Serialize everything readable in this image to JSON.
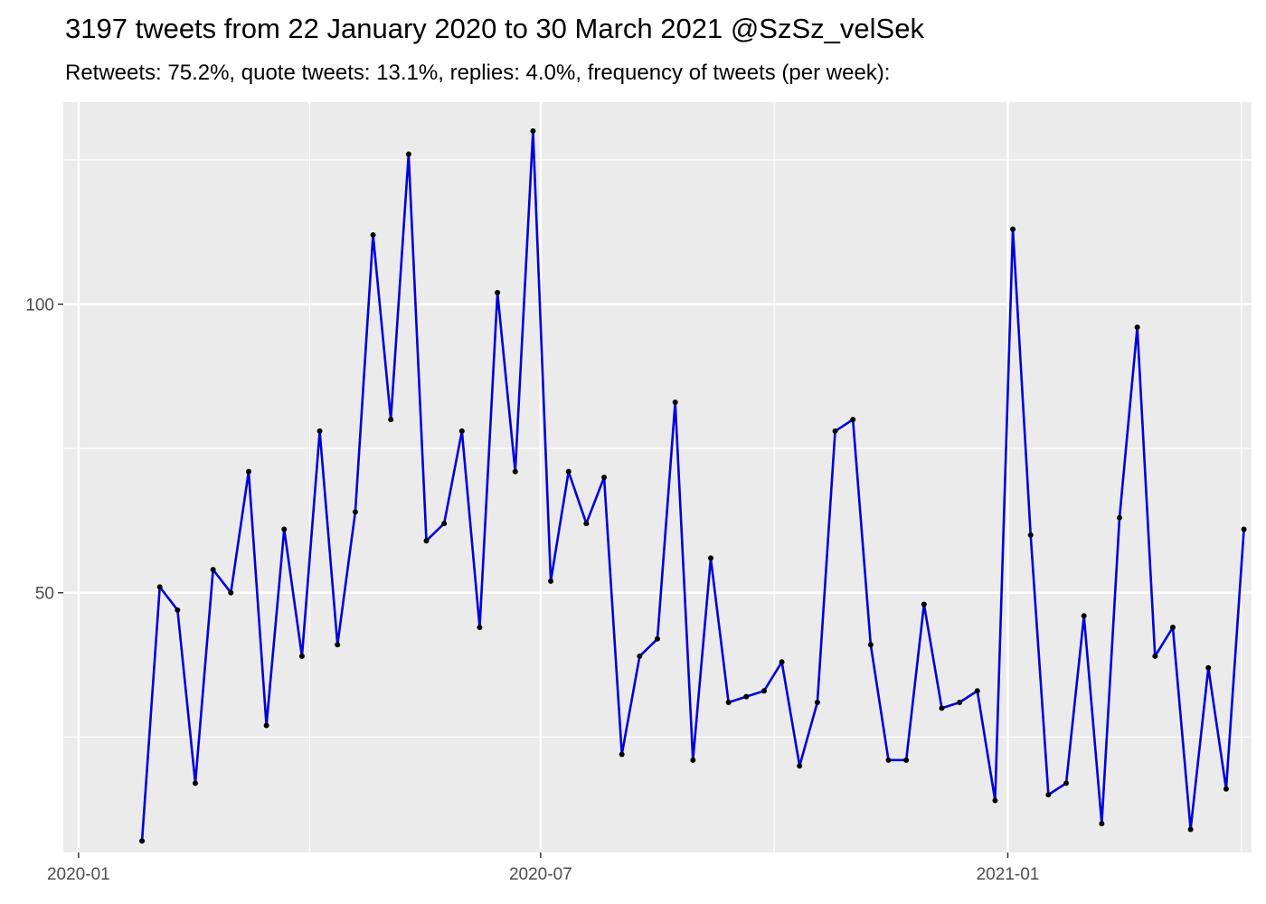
{
  "chart_data": {
    "type": "line",
    "title": "3197 tweets from 22 January 2020 to 30 March 2021 @SzSz_velSek",
    "subtitle": "Retweets: 75.2%, quote tweets: 13.1%, replies: 4.0%, frequency of tweets (per week):",
    "xlabel": "",
    "ylabel": "",
    "x_ticks": [
      {
        "date": "2020-01-01",
        "label": "2020-01"
      },
      {
        "date": "2020-07-01",
        "label": "2020-07"
      },
      {
        "date": "2021-01-01",
        "label": "2021-01"
      }
    ],
    "y_ticks": [
      50,
      100
    ],
    "xlim": [
      "2019-12-26",
      "2021-04-07"
    ],
    "ylim": [
      5,
      135
    ],
    "grid": true,
    "line_color": "#0000dd",
    "point_color": "#000000",
    "panel_background": "#ebebeb",
    "x": [
      "2020-01-26",
      "2020-02-02",
      "2020-02-09",
      "2020-02-16",
      "2020-02-23",
      "2020-03-01",
      "2020-03-08",
      "2020-03-15",
      "2020-03-22",
      "2020-03-29",
      "2020-04-05",
      "2020-04-12",
      "2020-04-19",
      "2020-04-26",
      "2020-05-03",
      "2020-05-10",
      "2020-05-17",
      "2020-05-24",
      "2020-05-31",
      "2020-06-07",
      "2020-06-14",
      "2020-06-21",
      "2020-06-28",
      "2020-07-05",
      "2020-07-12",
      "2020-07-19",
      "2020-07-26",
      "2020-08-02",
      "2020-08-09",
      "2020-08-16",
      "2020-08-23",
      "2020-08-30",
      "2020-09-06",
      "2020-09-13",
      "2020-09-20",
      "2020-09-27",
      "2020-10-04",
      "2020-10-11",
      "2020-10-18",
      "2020-10-25",
      "2020-11-01",
      "2020-11-08",
      "2020-11-15",
      "2020-11-22",
      "2020-11-29",
      "2020-12-06",
      "2020-12-13",
      "2020-12-20",
      "2020-12-27",
      "2021-01-03",
      "2021-01-10",
      "2021-01-17",
      "2021-01-24",
      "2021-01-31",
      "2021-02-07",
      "2021-02-14",
      "2021-02-21",
      "2021-02-28",
      "2021-03-07",
      "2021-03-14",
      "2021-03-21",
      "2021-03-28",
      "2021-04-04"
    ],
    "series": [
      {
        "values": [
          7,
          51,
          47,
          17,
          54,
          50,
          71,
          27,
          61,
          39,
          78,
          41,
          64,
          112,
          80,
          126,
          59,
          62,
          78,
          44,
          102,
          71,
          130,
          52,
          71,
          62,
          70,
          22,
          39,
          42,
          83,
          21,
          56,
          31,
          32,
          33,
          38,
          20,
          31,
          78,
          80,
          41,
          21,
          21,
          48,
          30,
          31,
          33,
          14,
          113,
          60,
          15,
          17,
          46,
          10,
          63,
          96,
          39,
          44,
          9,
          37,
          16,
          61
        ]
      }
    ]
  }
}
